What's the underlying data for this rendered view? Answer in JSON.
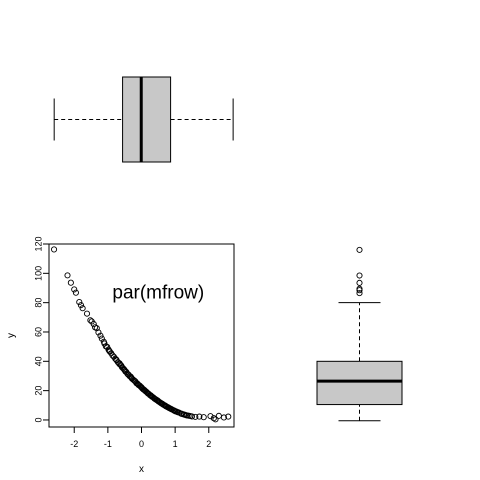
{
  "chart_data": [
    {
      "type": "boxplot",
      "orientation": "horizontal",
      "variable": "x",
      "stats": {
        "whisker_low": -2.6,
        "q1": -0.62,
        "median": -0.08,
        "q3": 0.77,
        "whisker_high": 2.58
      },
      "box_color": "#c8c8c8"
    },
    {
      "type": "scatter",
      "xlabel": "x",
      "ylabel": "y",
      "xlim": [
        -2.75,
        2.75
      ],
      "ylim": [
        -4.8,
        120
      ],
      "xticks": [
        -2,
        -1,
        0,
        1,
        2
      ],
      "yticks": [
        0,
        20,
        40,
        60,
        80,
        100,
        120
      ],
      "annotation": "par(mfrow)",
      "annotation_pos": [
        0.5,
        83
      ],
      "marker": "open-circle",
      "points": [
        [
          -2.6,
          116.3
        ],
        [
          -2.2,
          98.6
        ],
        [
          -2.1,
          93.6
        ],
        [
          -2.0,
          89.0
        ],
        [
          -1.95,
          86.8
        ],
        [
          -1.85,
          80.4
        ],
        [
          -1.8,
          78.3
        ],
        [
          -1.75,
          76.2
        ],
        [
          -1.62,
          72.5
        ],
        [
          -1.48,
          67.2
        ],
        [
          -1.42,
          65.4
        ],
        [
          -1.38,
          63.2
        ],
        [
          -1.33,
          62.6
        ],
        [
          -1.28,
          59.7
        ],
        [
          -1.22,
          57.5
        ],
        [
          -1.18,
          55.5
        ],
        [
          -1.12,
          53.3
        ],
        [
          -1.06,
          50.2
        ],
        [
          -1.02,
          49.8
        ],
        [
          -0.98,
          48.0
        ],
        [
          -0.94,
          46.6
        ],
        [
          -0.9,
          45.5
        ],
        [
          -0.86,
          44.0
        ],
        [
          -0.82,
          43.1
        ],
        [
          -0.78,
          41.8
        ],
        [
          -0.74,
          40.7
        ],
        [
          -0.7,
          39.4
        ],
        [
          -0.66,
          38.2
        ],
        [
          -0.62,
          37.5
        ],
        [
          -0.58,
          36.0
        ],
        [
          -0.55,
          35.3
        ],
        [
          -0.52,
          34.6
        ],
        [
          -0.48,
          33.1
        ],
        [
          -0.45,
          32.7
        ],
        [
          -0.42,
          31.6
        ],
        [
          -0.38,
          30.8
        ],
        [
          -0.35,
          29.8
        ],
        [
          -0.32,
          29.5
        ],
        [
          -0.28,
          28.1
        ],
        [
          -0.25,
          27.6
        ],
        [
          -0.22,
          27.0
        ],
        [
          -0.18,
          26.2
        ],
        [
          -0.15,
          25.1
        ],
        [
          -0.12,
          24.8
        ],
        [
          -0.08,
          23.7
        ],
        [
          -0.05,
          23.4
        ],
        [
          -0.02,
          22.6
        ],
        [
          0.02,
          21.6
        ],
        [
          0.05,
          21.0
        ],
        [
          0.08,
          20.5
        ],
        [
          0.12,
          19.6
        ],
        [
          0.15,
          19.1
        ],
        [
          0.18,
          18.4
        ],
        [
          0.22,
          17.7
        ],
        [
          0.25,
          17.0
        ],
        [
          0.28,
          16.6
        ],
        [
          0.32,
          15.8
        ],
        [
          0.35,
          15.4
        ],
        [
          0.38,
          14.7
        ],
        [
          0.42,
          14.1
        ],
        [
          0.45,
          13.6
        ],
        [
          0.48,
          13.2
        ],
        [
          0.52,
          12.4
        ],
        [
          0.55,
          12.0
        ],
        [
          0.58,
          11.5
        ],
        [
          0.62,
          11.0
        ],
        [
          0.65,
          10.4
        ],
        [
          0.68,
          10.1
        ],
        [
          0.72,
          9.5
        ],
        [
          0.75,
          9.1
        ],
        [
          0.78,
          8.7
        ],
        [
          0.82,
          8.2
        ],
        [
          0.85,
          7.8
        ],
        [
          0.9,
          7.2
        ],
        [
          0.95,
          6.7
        ],
        [
          1.0,
          6.0
        ],
        [
          1.05,
          5.6
        ],
        [
          1.12,
          5.0
        ],
        [
          1.18,
          4.3
        ],
        [
          1.25,
          3.8
        ],
        [
          1.32,
          3.3
        ],
        [
          1.4,
          2.9
        ],
        [
          1.5,
          2.4
        ],
        [
          1.6,
          2.1
        ],
        [
          1.72,
          2.3
        ],
        [
          1.85,
          1.9
        ],
        [
          2.05,
          2.6
        ],
        [
          2.15,
          1.2
        ],
        [
          2.2,
          0.4
        ],
        [
          2.3,
          2.8
        ],
        [
          2.45,
          1.7
        ],
        [
          2.58,
          2.3
        ],
        [
          -1.52,
          68.0
        ],
        [
          -1.1,
          52.1
        ],
        [
          -0.96,
          47.2
        ],
        [
          -0.6,
          37.0
        ],
        [
          -0.4,
          31.0
        ],
        [
          -0.3,
          28.8
        ],
        [
          -0.1,
          24.2
        ],
        [
          0.0,
          22.3
        ],
        [
          0.1,
          20.1
        ],
        [
          0.2,
          18.0
        ],
        [
          0.3,
          16.1
        ],
        [
          0.4,
          14.4
        ],
        [
          0.5,
          12.8
        ],
        [
          0.6,
          11.2
        ],
        [
          0.7,
          9.8
        ],
        [
          0.8,
          8.5
        ],
        [
          0.88,
          7.5
        ],
        [
          0.97,
          6.4
        ],
        [
          1.08,
          5.3
        ],
        [
          1.2,
          4.2
        ],
        [
          1.35,
          3.1
        ],
        [
          1.45,
          2.7
        ],
        [
          -0.75,
          41.2
        ],
        [
          -0.65,
          38.6
        ],
        [
          -0.5,
          34.0
        ],
        [
          -0.2,
          26.6
        ],
        [
          0.06,
          20.8
        ],
        [
          0.27,
          16.8
        ],
        [
          0.47,
          13.4
        ],
        [
          0.73,
          9.3
        ],
        [
          1.02,
          5.9
        ],
        [
          1.28,
          3.6
        ]
      ]
    },
    {
      "type": "boxplot",
      "orientation": "vertical",
      "variable": "y",
      "stats": {
        "whisker_low": -0.5,
        "q1": 10.5,
        "median": 26.5,
        "q3": 40.0,
        "whisker_high": 80.0
      },
      "outliers": [
        86.5,
        88.5,
        89.5,
        93.5,
        98.5,
        116.0
      ],
      "box_color": "#c8c8c8"
    }
  ]
}
